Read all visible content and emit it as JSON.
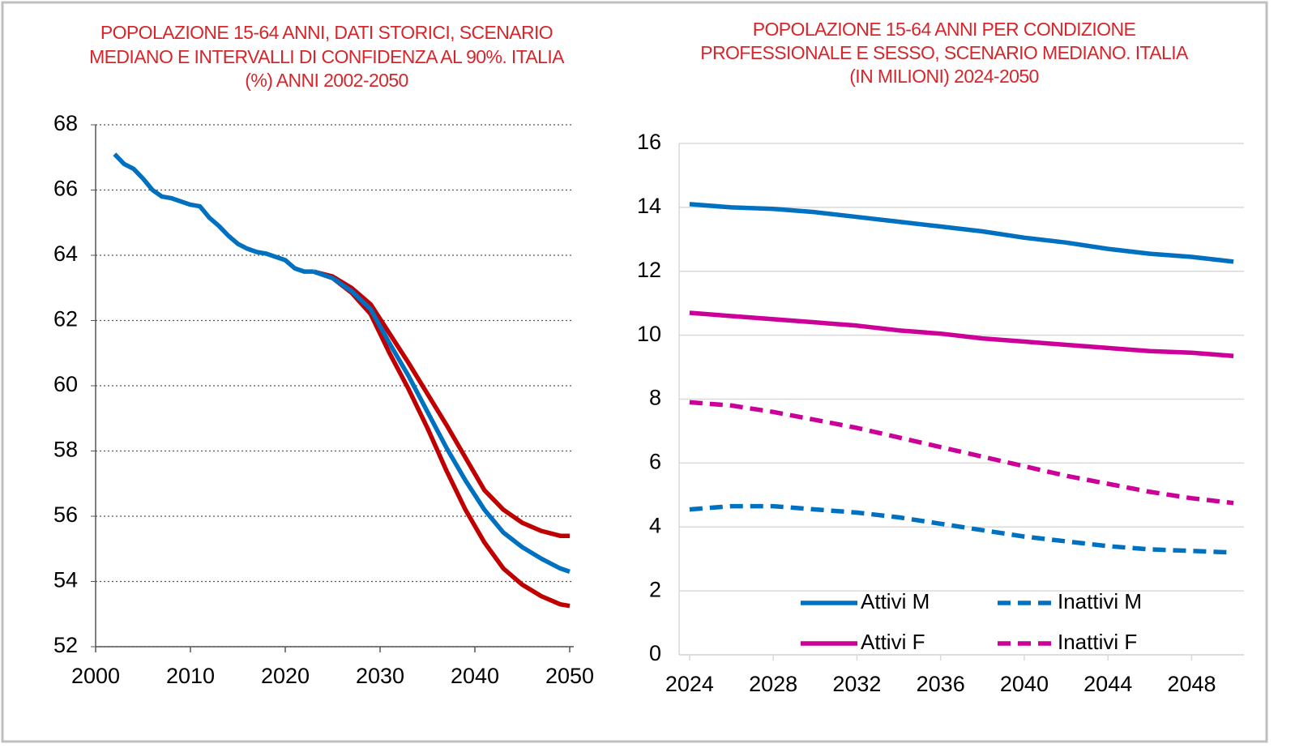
{
  "chart_data": [
    {
      "type": "line",
      "title": [
        "POPOLAZIONE 15-64 ANNI, DATI STORICI, SCENARIO",
        "MEDIANO E INTERVALLI DI CONFIDENZA AL 90%. ITALIA",
        "(%) ANNI 2002-2050"
      ],
      "xlim": [
        2000,
        2050
      ],
      "xticks": [
        2000,
        2010,
        2020,
        2030,
        2040,
        2050
      ],
      "ylim": [
        52,
        68
      ],
      "yticks": [
        52,
        54,
        56,
        58,
        60,
        62,
        64,
        66,
        68
      ],
      "grid": "dotted",
      "series": [
        {
          "color": "#c00000",
          "x": [
            2023,
            2025,
            2027,
            2029,
            2031,
            2033,
            2035,
            2037,
            2039,
            2041,
            2043,
            2045,
            2047,
            2049,
            2050
          ],
          "values": [
            63.5,
            63.35,
            63.0,
            62.5,
            61.6,
            60.7,
            59.75,
            58.8,
            57.8,
            56.8,
            56.2,
            55.8,
            55.55,
            55.4,
            55.4
          ]
        },
        {
          "color": "#c00000",
          "x": [
            2023,
            2025,
            2027,
            2029,
            2031,
            2033,
            2035,
            2037,
            2039,
            2041,
            2043,
            2045,
            2047,
            2049,
            2050
          ],
          "values": [
            63.5,
            63.3,
            62.85,
            62.2,
            61.0,
            59.9,
            58.7,
            57.4,
            56.2,
            55.2,
            54.4,
            53.9,
            53.55,
            53.3,
            53.25
          ]
        },
        {
          "color": "#0070c0",
          "x": [
            2023,
            2025,
            2027,
            2029,
            2031,
            2033,
            2035,
            2037,
            2039,
            2041,
            2043,
            2045,
            2047,
            2049,
            2050
          ],
          "values": [
            63.5,
            63.3,
            62.9,
            62.35,
            61.3,
            60.3,
            59.2,
            58.1,
            57.1,
            56.2,
            55.5,
            55.05,
            54.7,
            54.4,
            54.3
          ]
        },
        {
          "color": "#0070c0",
          "x": [
            2002,
            2003,
            2004,
            2005,
            2006,
            2007,
            2008,
            2009,
            2010,
            2011,
            2012,
            2013,
            2014,
            2015,
            2016,
            2017,
            2018,
            2019,
            2020,
            2021,
            2022,
            2023
          ],
          "values": [
            67.1,
            66.8,
            66.65,
            66.35,
            66.0,
            65.8,
            65.75,
            65.65,
            65.55,
            65.5,
            65.15,
            64.9,
            64.6,
            64.35,
            64.2,
            64.1,
            64.05,
            63.95,
            63.85,
            63.6,
            63.5,
            63.5
          ]
        }
      ]
    },
    {
      "type": "line",
      "title": [
        "POPOLAZIONE 15-64 ANNI PER CONDIZIONE",
        "PROFESSIONALE E SESSO, SCENARIO MEDIANO. ITALIA",
        "(IN MILIONI) 2024-2050"
      ],
      "xlim": [
        2023.5,
        2050.5
      ],
      "xticks": [
        2024,
        2028,
        2032,
        2036,
        2040,
        2044,
        2048
      ],
      "ylim": [
        0,
        16
      ],
      "yticks": [
        0,
        2,
        4,
        6,
        8,
        10,
        12,
        14,
        16
      ],
      "grid": "solid",
      "legend": "bottom",
      "x": [
        2024,
        2026,
        2028,
        2030,
        2032,
        2034,
        2036,
        2038,
        2040,
        2042,
        2044,
        2046,
        2048,
        2050
      ],
      "series": [
        {
          "name": "Attivi M",
          "color": "#0070c0",
          "dash": false,
          "values": [
            14.1,
            14.0,
            13.95,
            13.85,
            13.7,
            13.55,
            13.4,
            13.25,
            13.05,
            12.9,
            12.7,
            12.55,
            12.45,
            12.3
          ]
        },
        {
          "name": "Inattivi M",
          "color": "#0070c0",
          "dash": true,
          "values": [
            4.55,
            4.65,
            4.65,
            4.55,
            4.45,
            4.3,
            4.1,
            3.9,
            3.7,
            3.55,
            3.4,
            3.3,
            3.25,
            3.2
          ]
        },
        {
          "name": "Attivi F",
          "color": "#cc0099",
          "dash": false,
          "values": [
            10.7,
            10.6,
            10.5,
            10.4,
            10.3,
            10.15,
            10.05,
            9.9,
            9.8,
            9.7,
            9.6,
            9.5,
            9.45,
            9.35
          ]
        },
        {
          "name": "Inattivi F",
          "color": "#cc0099",
          "dash": true,
          "values": [
            7.9,
            7.8,
            7.6,
            7.35,
            7.1,
            6.8,
            6.5,
            6.2,
            5.9,
            5.6,
            5.35,
            5.1,
            4.9,
            4.75
          ]
        }
      ]
    }
  ]
}
